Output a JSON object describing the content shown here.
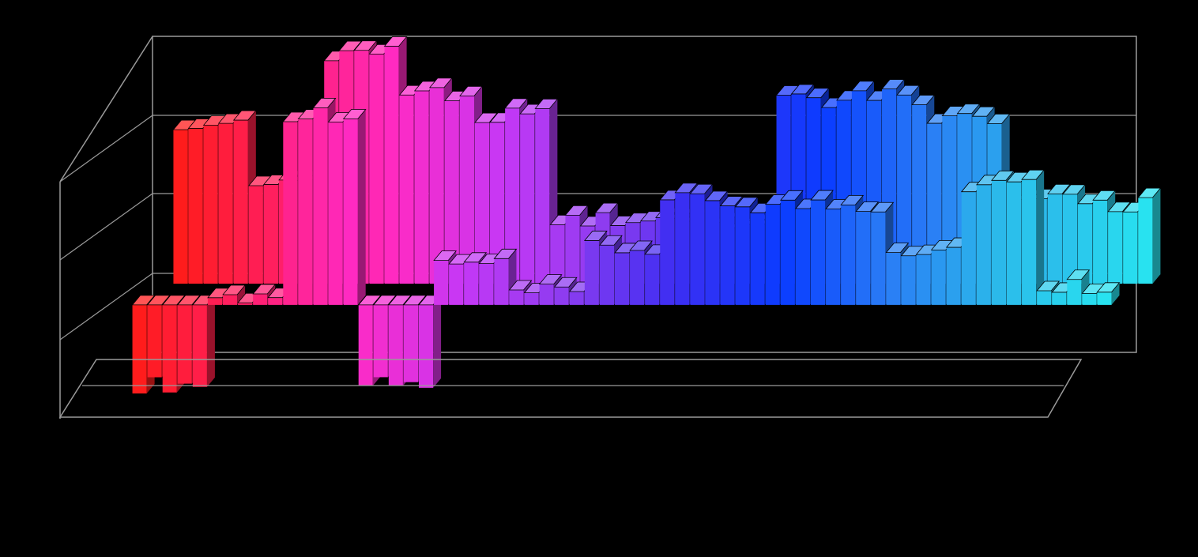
{
  "chart_data": {
    "type": "bar",
    "style": "3d-clustered-columns",
    "title": "",
    "xlabel": "",
    "ylabel": "",
    "grid": true,
    "legend": "none",
    "ylim": [
      -1,
      3
    ],
    "palette": [
      "#ff1c1c",
      "#ff1f6a",
      "#ff2ac4",
      "#c638f5",
      "#8a3cf0",
      "#3c2ef2",
      "#0a3cff",
      "#2a7ef5",
      "#2bb8ea",
      "#28e2f0"
    ],
    "background": "#000000",
    "frame_color": "#9a9a9a",
    "series": [
      {
        "name": "",
        "values": [
          -1.0,
          0.1,
          2.4,
          -1.0,
          0.5,
          0.15,
          0.7,
          1.3,
          1.25,
          1.25,
          0.7,
          1.5,
          0.25
        ]
      },
      {
        "name": "",
        "values": [
          2.0,
          1.3,
          2.9,
          2.4,
          2.1,
          0.8,
          0.8,
          0.8,
          2.3,
          2.35,
          2.1,
          1.1,
          1.0
        ]
      }
    ]
  }
}
